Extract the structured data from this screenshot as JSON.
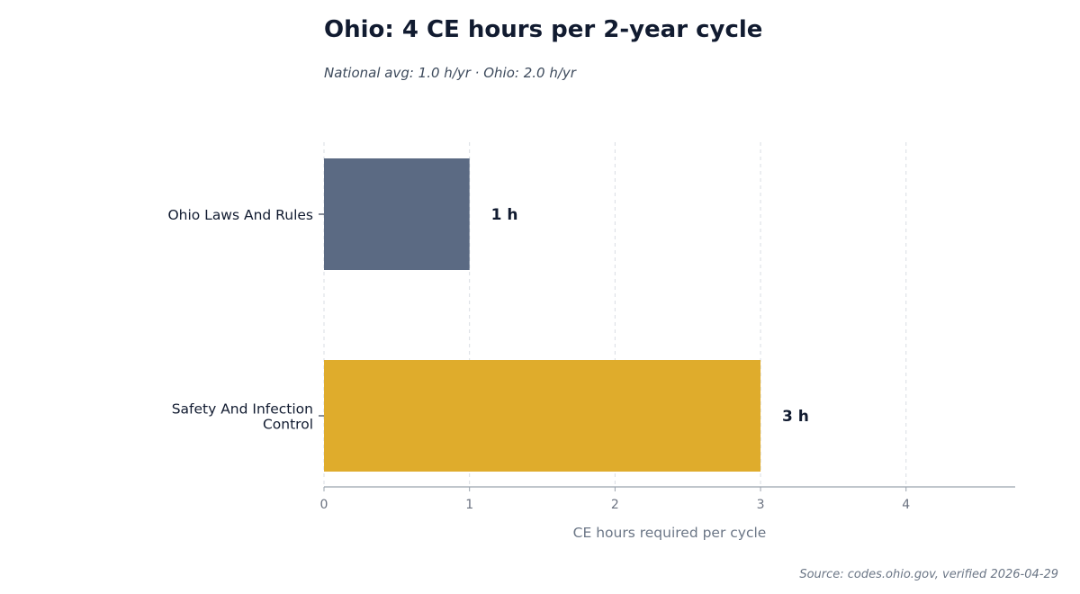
{
  "title": "Ohio: 4 CE hours per 2-year cycle",
  "subtitle": "National avg: 1.0 h/yr · Ohio: 2.0 h/yr",
  "source": "Source: codes.ohio.gov, verified 2026-04-29",
  "chart_data": {
    "type": "bar",
    "orientation": "horizontal",
    "categories": [
      [
        "Ohio Laws And Rules"
      ],
      [
        "Safety And Infection",
        "Control"
      ]
    ],
    "values": [
      1,
      3
    ],
    "value_labels": [
      "1 h",
      "3 h"
    ],
    "colors": [
      "#5b6a83",
      "#dfac2c"
    ],
    "xlabel": "CE hours required per cycle",
    "xticks": [
      "0",
      "1",
      "2",
      "3",
      "4"
    ],
    "xlim": [
      0,
      4.75
    ],
    "grid": "vertical dashed"
  }
}
